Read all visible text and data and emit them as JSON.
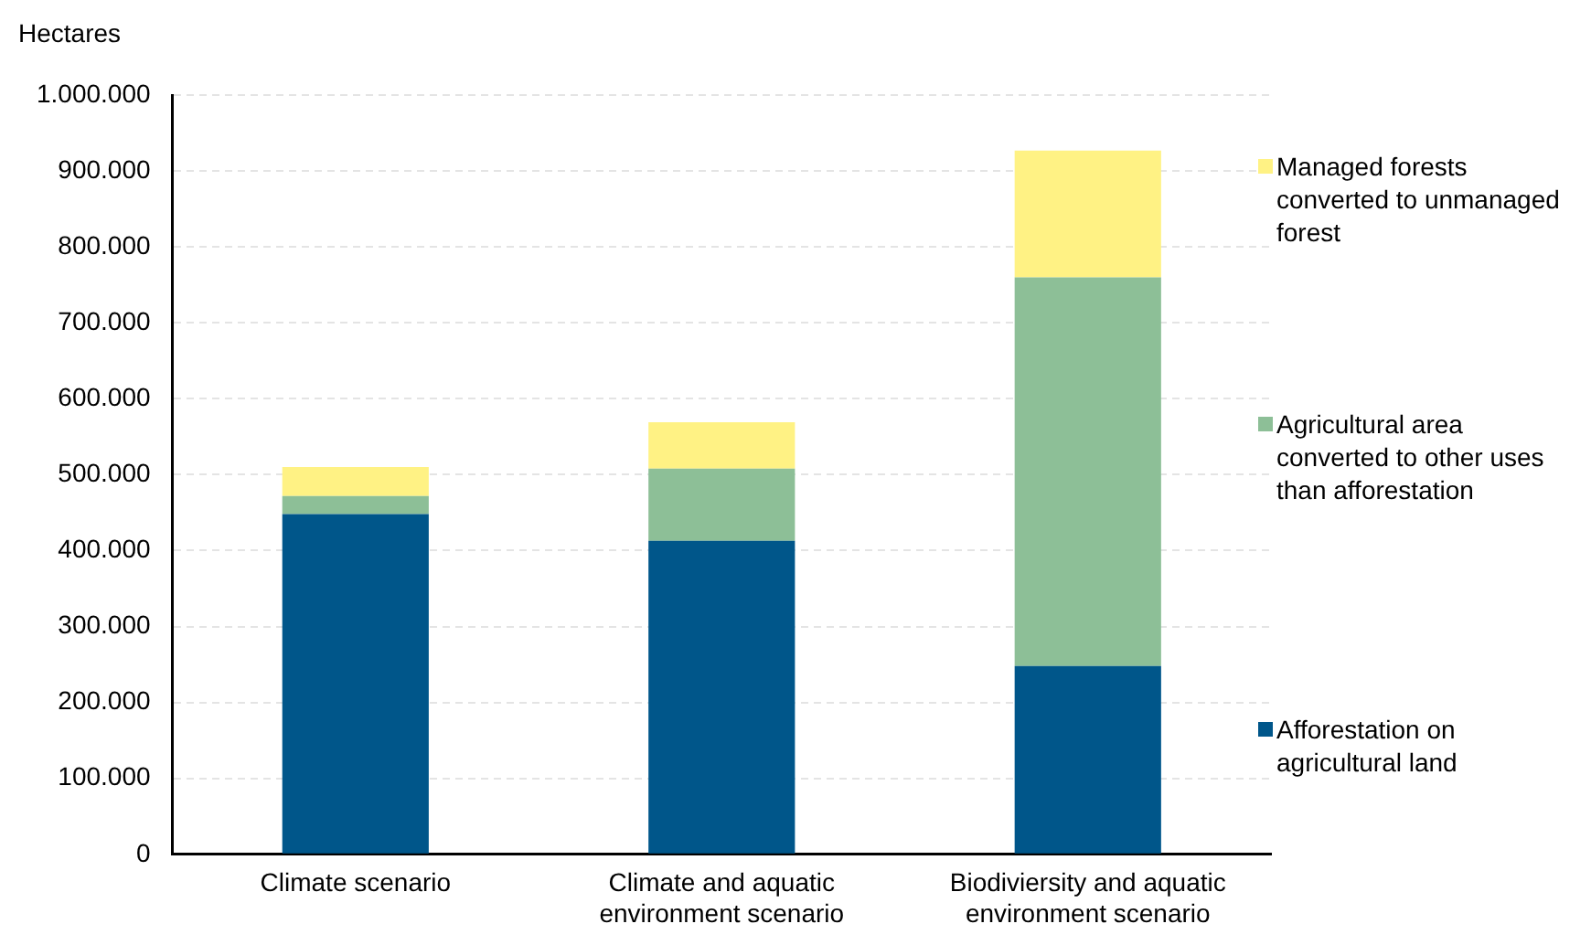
{
  "chart_data": {
    "type": "bar",
    "stacked": true,
    "ylabel": "Hectares",
    "categories": [
      "Climate scenario",
      "Climate and aquatic environment scenario",
      "Biodiviersity and aquatic environment scenario"
    ],
    "series": [
      {
        "name": "Afforestation on agricultural land",
        "color": "#00568a",
        "values": [
          448000,
          413000,
          248000
        ]
      },
      {
        "name": "Agricultural area converted to other uses than afforestation",
        "color": "#8dbf97",
        "values": [
          24000,
          95000,
          512000
        ]
      },
      {
        "name": "Managed forests converted to unmanaged forest",
        "color": "#fff284",
        "values": [
          38000,
          61000,
          167000
        ]
      }
    ],
    "ylim": [
      0,
      1000000
    ],
    "yticks": [
      0,
      {
        "value": 100000,
        "label": "100.000"
      },
      {
        "value": 200000,
        "label": "200.000"
      },
      {
        "value": 300000,
        "label": "300.000"
      },
      {
        "value": 400000,
        "label": "400.000"
      },
      {
        "value": 500000,
        "label": "500.000"
      },
      {
        "value": 600000,
        "label": "600.000"
      },
      {
        "value": 700000,
        "label": "700.000"
      },
      {
        "value": 800000,
        "label": "800.000"
      },
      {
        "value": 900000,
        "label": "900.000"
      },
      {
        "value": 1000000,
        "label": "1.000.000"
      }
    ],
    "grid": "y",
    "legend": "right"
  }
}
